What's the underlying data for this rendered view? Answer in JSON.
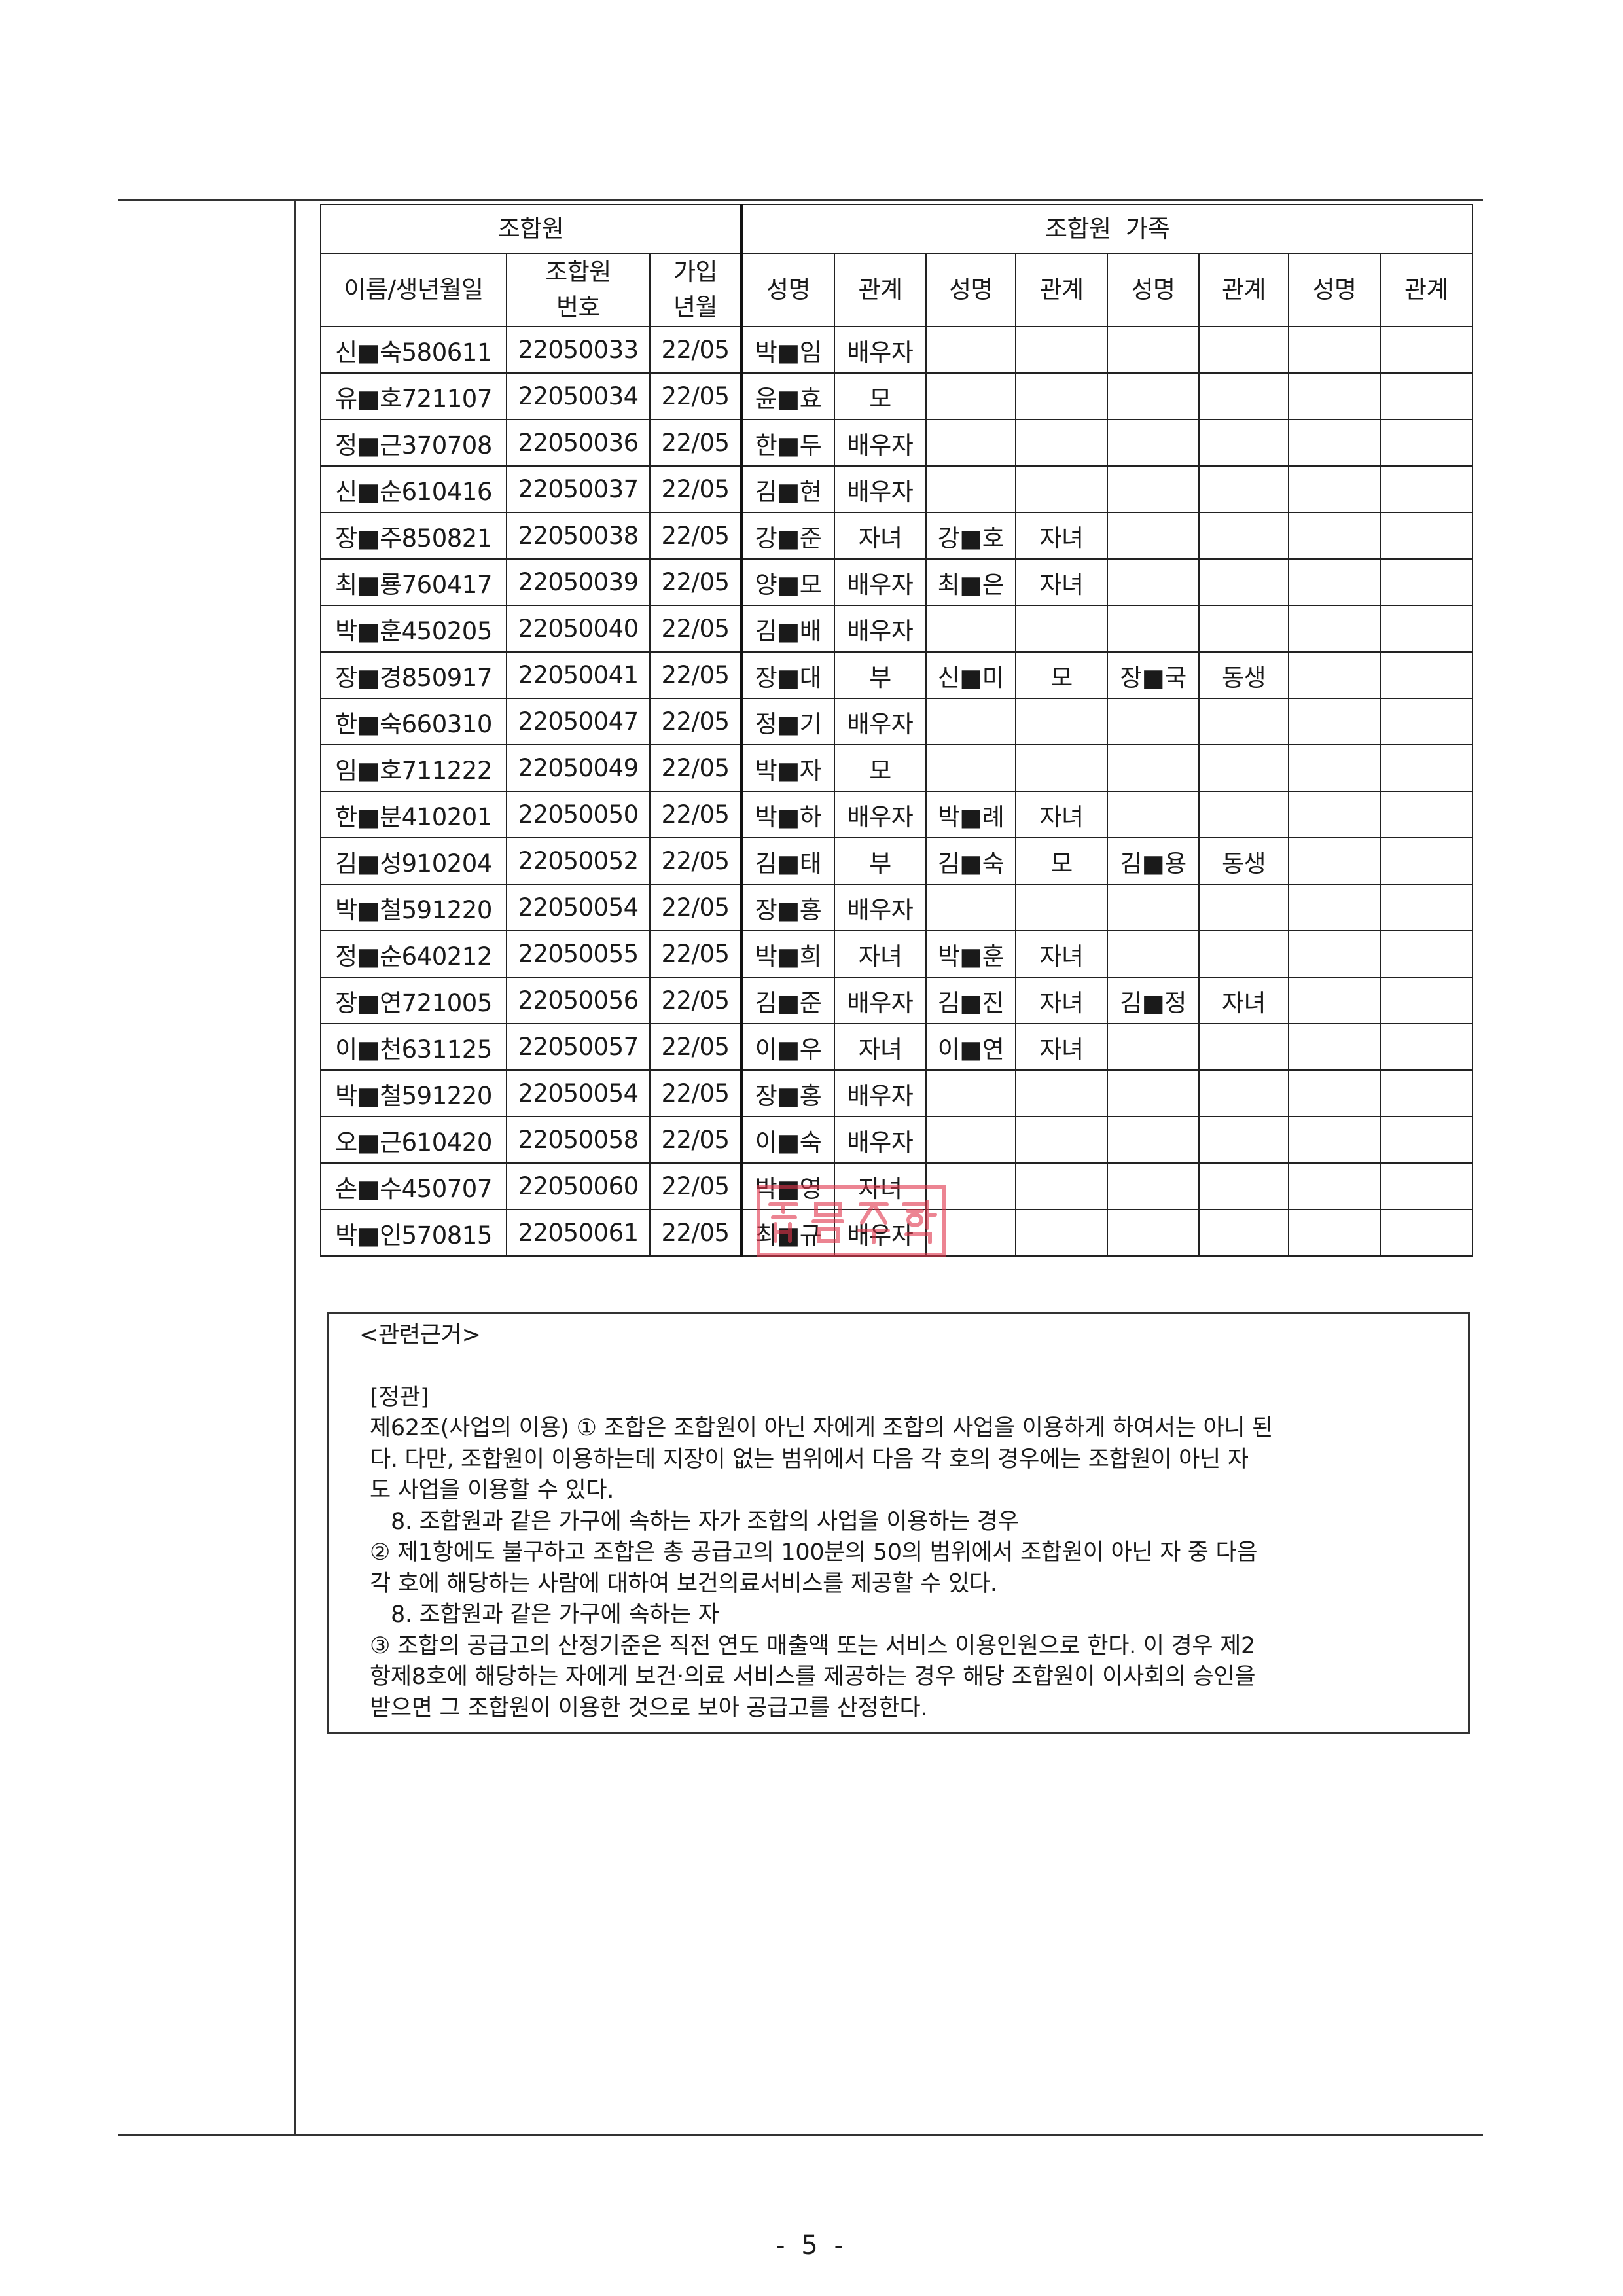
{
  "table": {
    "group_headers": {
      "member": "조합원",
      "family": "조합원  가족"
    },
    "member_headers": {
      "name_birth": "이름/생년월일",
      "member_no": "조합원\n번호",
      "join_date": "가입\n년월"
    },
    "family_headers": [
      "성명",
      "관계",
      "성명",
      "관계",
      "성명",
      "관계",
      "성명",
      "관계"
    ],
    "rows": [
      {
        "member": "신■숙580611",
        "no": "22050033",
        "joined": "22/05",
        "family": [
          "박■임",
          "배우자",
          "",
          "",
          "",
          "",
          "",
          ""
        ]
      },
      {
        "member": "유■호721107",
        "no": "22050034",
        "joined": "22/05",
        "family": [
          "윤■효",
          "모",
          "",
          "",
          "",
          "",
          "",
          ""
        ]
      },
      {
        "member": "정■근370708",
        "no": "22050036",
        "joined": "22/05",
        "family": [
          "한■두",
          "배우자",
          "",
          "",
          "",
          "",
          "",
          ""
        ]
      },
      {
        "member": "신■순610416",
        "no": "22050037",
        "joined": "22/05",
        "family": [
          "김■현",
          "배우자",
          "",
          "",
          "",
          "",
          "",
          ""
        ]
      },
      {
        "member": "장■주850821",
        "no": "22050038",
        "joined": "22/05",
        "family": [
          "강■준",
          "자녀",
          "강■호",
          "자녀",
          "",
          "",
          "",
          ""
        ]
      },
      {
        "member": "최■룡760417",
        "no": "22050039",
        "joined": "22/05",
        "family": [
          "양■모",
          "배우자",
          "최■은",
          "자녀",
          "",
          "",
          "",
          ""
        ]
      },
      {
        "member": "박■훈450205",
        "no": "22050040",
        "joined": "22/05",
        "family": [
          "김■배",
          "배우자",
          "",
          "",
          "",
          "",
          "",
          ""
        ]
      },
      {
        "member": "장■경850917",
        "no": "22050041",
        "joined": "22/05",
        "family": [
          "장■대",
          "부",
          "신■미",
          "모",
          "장■국",
          "동생",
          "",
          ""
        ]
      },
      {
        "member": "한■숙660310",
        "no": "22050047",
        "joined": "22/05",
        "family": [
          "정■기",
          "배우자",
          "",
          "",
          "",
          "",
          "",
          ""
        ]
      },
      {
        "member": "임■호711222",
        "no": "22050049",
        "joined": "22/05",
        "family": [
          "박■자",
          "모",
          "",
          "",
          "",
          "",
          "",
          ""
        ]
      },
      {
        "member": "한■분410201",
        "no": "22050050",
        "joined": "22/05",
        "family": [
          "박■하",
          "배우자",
          "박■례",
          "자녀",
          "",
          "",
          "",
          ""
        ]
      },
      {
        "member": "김■성910204",
        "no": "22050052",
        "joined": "22/05",
        "family": [
          "김■태",
          "부",
          "김■숙",
          "모",
          "김■용",
          "동생",
          "",
          ""
        ]
      },
      {
        "member": "박■철591220",
        "no": "22050054",
        "joined": "22/05",
        "family": [
          "장■홍",
          "배우자",
          "",
          "",
          "",
          "",
          "",
          ""
        ]
      },
      {
        "member": "정■순640212",
        "no": "22050055",
        "joined": "22/05",
        "family": [
          "박■희",
          "자녀",
          "박■훈",
          "자녀",
          "",
          "",
          "",
          ""
        ]
      },
      {
        "member": "장■연721005",
        "no": "22050056",
        "joined": "22/05",
        "family": [
          "김■준",
          "배우자",
          "김■진",
          "자녀",
          "김■정",
          "자녀",
          "",
          ""
        ]
      },
      {
        "member": "이■천631125",
        "no": "22050057",
        "joined": "22/05",
        "family": [
          "이■우",
          "자녀",
          "이■연",
          "자녀",
          "",
          "",
          "",
          ""
        ]
      },
      {
        "member": "박■철591220",
        "no": "22050054",
        "joined": "22/05",
        "family": [
          "장■홍",
          "배우자",
          "",
          "",
          "",
          "",
          "",
          ""
        ]
      },
      {
        "member": "오■근610420",
        "no": "22050058",
        "joined": "22/05",
        "family": [
          "이■숙",
          "배우자",
          "",
          "",
          "",
          "",
          "",
          ""
        ]
      },
      {
        "member": "손■수450707",
        "no": "22050060",
        "joined": "22/05",
        "family": [
          "박■영",
          "자녀",
          "",
          "",
          "",
          "",
          "",
          ""
        ]
      },
      {
        "member": "박■인570815",
        "no": "22050061",
        "joined": "22/05",
        "family": [
          "최■규",
          "배우자",
          "",
          "",
          "",
          "",
          "",
          ""
        ]
      }
    ]
  },
  "stamp": {
    "text": "협동조합",
    "color": "#e0344a"
  },
  "basis": {
    "title": "<관련근거>",
    "section": "[정관]",
    "lines": [
      "제62조(사업의 이용) ① 조합은 조합원이 아닌 자에게 조합의 사업을 이용하게 하여서는 아니 된",
      "다. 다만, 조합원이 이용하는데 지장이 없는 범위에서 다음 각 호의 경우에는 조합원이 아닌 자",
      "도 사업을 이용할 수 있다.",
      "8. 조합원과 같은 가구에 속하는 자가 조합의 사업을 이용하는 경우",
      "② 제1항에도 불구하고 조합은 총 공급고의 100분의 50의 범위에서 조합원이 아닌 자 중 다음",
      "각 호에 해당하는 사람에 대하여 보건의료서비스를 제공할 수 있다.",
      "8. 조합원과 같은 가구에 속하는 자",
      "③ 조합의 공급고의 산정기준은 직전 연도 매출액 또는 서비스 이용인원으로 한다. 이 경우 제2",
      "항제8호에 해당하는 자에게 보건·의료 서비스를 제공하는 경우 해당 조합원이 이사회의 승인을",
      "받으면 그 조합원이 이용한 것으로 보아 공급고를 산정한다."
    ]
  },
  "page_number": "- 5 -"
}
